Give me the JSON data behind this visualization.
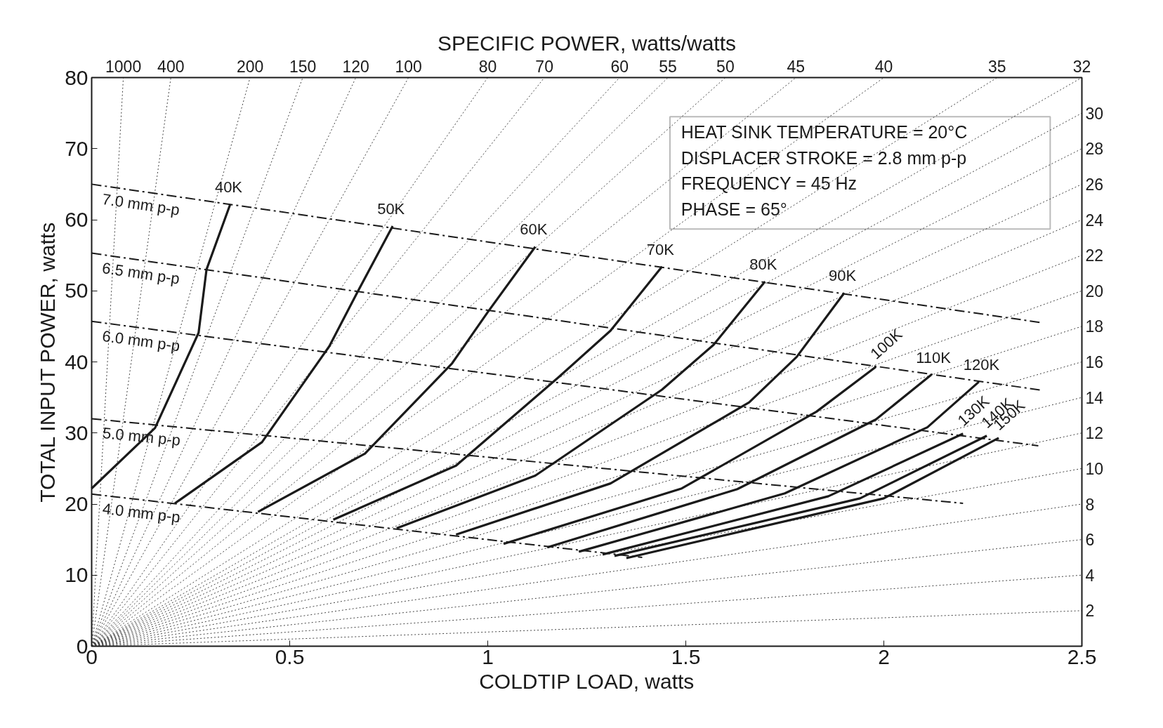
{
  "chart_data": {
    "type": "line",
    "title": "SPECIFIC POWER, watts/watts",
    "xlabel": "COLDTIP LOAD, watts",
    "ylabel": "TOTAL INPUT POWER, watts",
    "xlim": [
      0,
      2.5
    ],
    "ylim": [
      0,
      80
    ],
    "xticks": [
      0,
      0.5,
      1,
      1.5,
      2,
      2.5
    ],
    "yticks": [
      0,
      10,
      20,
      30,
      40,
      50,
      60,
      70,
      80
    ],
    "y2lim": [
      0,
      32
    ],
    "y2ticks": [
      2,
      4,
      6,
      8,
      10,
      12,
      14,
      16,
      18,
      20,
      22,
      24,
      26,
      28,
      30
    ],
    "marker": "none",
    "line_style": "solid",
    "series": [
      {
        "color": "#444444",
        "line_style": "dotted",
        "x": [
          0,
          0.08
        ],
        "values": [
          0,
          80
        ]
      },
      {
        "color": "#444444",
        "line_style": "dotted",
        "x": [
          0,
          0.2
        ],
        "values": [
          0,
          80
        ]
      },
      {
        "color": "#444444",
        "line_style": "dotted",
        "x": [
          0,
          0.4
        ],
        "values": [
          0,
          80
        ]
      },
      {
        "color": "#444444",
        "line_style": "dotted",
        "x": [
          0,
          0.533
        ],
        "values": [
          0,
          80
        ]
      },
      {
        "color": "#444444",
        "line_style": "dotted",
        "x": [
          0,
          0.667
        ],
        "values": [
          0,
          80
        ]
      },
      {
        "color": "#444444",
        "line_style": "dotted",
        "x": [
          0,
          0.8
        ],
        "values": [
          0,
          80
        ]
      },
      {
        "color": "#444444",
        "line_style": "dotted",
        "x": [
          0,
          1.0
        ],
        "values": [
          0,
          80
        ]
      },
      {
        "color": "#444444",
        "line_style": "dotted",
        "x": [
          0,
          1.143
        ],
        "values": [
          0,
          80
        ]
      },
      {
        "color": "#444444",
        "line_style": "dotted",
        "x": [
          0,
          1.333
        ],
        "values": [
          0,
          80
        ]
      },
      {
        "color": "#444444",
        "line_style": "dotted",
        "x": [
          0,
          1.455
        ],
        "values": [
          0,
          80
        ]
      },
      {
        "color": "#444444",
        "line_style": "dotted",
        "x": [
          0,
          1.6
        ],
        "values": [
          0,
          80
        ]
      },
      {
        "color": "#444444",
        "line_style": "dotted",
        "x": [
          0,
          1.778
        ],
        "values": [
          0,
          80
        ]
      },
      {
        "color": "#444444",
        "line_style": "dotted",
        "x": [
          0,
          2.0
        ],
        "values": [
          0,
          80
        ]
      },
      {
        "color": "#444444",
        "line_style": "dotted",
        "x": [
          0,
          2.286
        ],
        "values": [
          0,
          80
        ]
      },
      {
        "color": "#444444",
        "line_style": "dotted",
        "x": [
          0,
          2.5
        ],
        "values": [
          0,
          80
        ]
      },
      {
        "color": "#444444",
        "line_style": "dotted",
        "x": [
          0,
          2.5
        ],
        "values": [
          0,
          75
        ]
      },
      {
        "color": "#444444",
        "line_style": "dotted",
        "x": [
          0,
          2.5
        ],
        "values": [
          0,
          70
        ]
      },
      {
        "color": "#444444",
        "line_style": "dotted",
        "x": [
          0,
          2.5
        ],
        "values": [
          0,
          65
        ]
      },
      {
        "color": "#444444",
        "line_style": "dotted",
        "x": [
          0,
          2.5
        ],
        "values": [
          0,
          60
        ]
      },
      {
        "color": "#444444",
        "line_style": "dotted",
        "x": [
          0,
          2.5
        ],
        "values": [
          0,
          55
        ]
      },
      {
        "color": "#444444",
        "line_style": "dotted",
        "x": [
          0,
          2.5
        ],
        "values": [
          0,
          50
        ]
      },
      {
        "color": "#444444",
        "line_style": "dotted",
        "x": [
          0,
          2.5
        ],
        "values": [
          0,
          45
        ]
      },
      {
        "color": "#444444",
        "line_style": "dotted",
        "x": [
          0,
          2.5
        ],
        "values": [
          0,
          40
        ]
      },
      {
        "color": "#444444",
        "line_style": "dotted",
        "x": [
          0,
          2.5
        ],
        "values": [
          0,
          35
        ]
      },
      {
        "color": "#444444",
        "line_style": "dotted",
        "x": [
          0,
          2.5
        ],
        "values": [
          0,
          30
        ]
      },
      {
        "color": "#444444",
        "line_style": "dotted",
        "x": [
          0,
          2.5
        ],
        "values": [
          0,
          25
        ]
      },
      {
        "color": "#444444",
        "line_style": "dotted",
        "x": [
          0,
          2.5
        ],
        "values": [
          0,
          20
        ]
      },
      {
        "color": "#444444",
        "line_style": "dotted",
        "x": [
          0,
          2.5
        ],
        "values": [
          0,
          15
        ]
      },
      {
        "color": "#444444",
        "line_style": "dotted",
        "x": [
          0,
          2.5
        ],
        "values": [
          0,
          10
        ]
      },
      {
        "color": "#444444",
        "line_style": "dotted",
        "x": [
          0,
          2.5
        ],
        "values": [
          0,
          5
        ]
      },
      {
        "name": "7.0 mm p-p",
        "color": "#1a1a1a",
        "line_style": "dashed",
        "x": [
          0,
          2.4
        ],
        "values": [
          65.0,
          45.5
        ]
      },
      {
        "name": "6.5 mm p-p",
        "color": "#1a1a1a",
        "line_style": "dashed",
        "x": [
          0,
          2.4
        ],
        "values": [
          55.3,
          36.0
        ]
      },
      {
        "name": "6.0 mm p-p",
        "color": "#1a1a1a",
        "line_style": "dashed",
        "x": [
          0,
          2.39
        ],
        "values": [
          45.7,
          28.2
        ]
      },
      {
        "name": "5.0 mm p-p",
        "color": "#1a1a1a",
        "line_style": "dashed",
        "x": [
          0,
          2.2
        ],
        "values": [
          32.0,
          20.1
        ]
      },
      {
        "name": "4.0 mm p-p",
        "color": "#1a1a1a",
        "line_style": "dashed",
        "x": [
          0,
          1.39
        ],
        "values": [
          21.4,
          12.5
        ]
      },
      {
        "name": "40K",
        "color": "#1a1a1a",
        "x": [
          0,
          0.16,
          0.27,
          0.29,
          0.35
        ],
        "values": [
          22.2,
          30.7,
          44.1,
          53.0,
          62.2
        ]
      },
      {
        "name": "50K",
        "color": "#1a1a1a",
        "x": [
          0.21,
          0.43,
          0.6,
          0.67,
          0.76
        ],
        "values": [
          20.1,
          28.7,
          42.2,
          49.7,
          59.1
        ]
      },
      {
        "name": "60K",
        "color": "#1a1a1a",
        "x": [
          0.42,
          0.69,
          0.91,
          1.0,
          1.12
        ],
        "values": [
          18.9,
          27.1,
          39.8,
          47.0,
          56.2
        ]
      },
      {
        "name": "70K",
        "color": "#1a1a1a",
        "x": [
          0.61,
          0.92,
          1.18,
          1.31,
          1.44
        ],
        "values": [
          17.8,
          25.4,
          37.9,
          44.4,
          53.4
        ]
      },
      {
        "name": "80K",
        "color": "#1a1a1a",
        "x": [
          0.77,
          1.12,
          1.44,
          1.57,
          1.7
        ],
        "values": [
          16.6,
          24.0,
          36.1,
          42.4,
          51.3
        ]
      },
      {
        "name": "90K",
        "color": "#1a1a1a",
        "x": [
          0.92,
          1.31,
          1.66,
          1.78,
          1.9
        ],
        "values": [
          15.7,
          22.9,
          34.3,
          40.7,
          49.7
        ]
      },
      {
        "name": "100K",
        "color": "#1a1a1a",
        "x": [
          1.04,
          1.49,
          1.83,
          1.98
        ],
        "values": [
          14.4,
          22.2,
          33.0,
          39.3
        ]
      },
      {
        "name": "110K",
        "color": "#1a1a1a",
        "x": [
          1.15,
          1.63,
          1.98,
          2.12
        ],
        "values": [
          13.9,
          22.1,
          31.9,
          38.2
        ]
      },
      {
        "name": "120K",
        "color": "#1a1a1a",
        "x": [
          1.23,
          1.75,
          2.11,
          2.24
        ],
        "values": [
          13.3,
          21.5,
          30.8,
          37.2
        ]
      },
      {
        "name": "130K",
        "color": "#1a1a1a",
        "x": [
          1.29,
          1.86,
          2.2
        ],
        "values": [
          12.9,
          21.1,
          29.9
        ]
      },
      {
        "name": "140K",
        "color": "#1a1a1a",
        "x": [
          1.32,
          1.94,
          2.26
        ],
        "values": [
          12.7,
          20.8,
          29.6
        ]
      },
      {
        "name": "150K",
        "color": "#1a1a1a",
        "x": [
          1.35,
          2.0,
          2.29
        ],
        "values": [
          12.4,
          20.8,
          29.3
        ]
      }
    ],
    "annotations": [
      "HEAT SINK TEMPERATURE = 20°C",
      "DISPLACER STROKE = 2.8 mm p-p",
      "FREQUENCY = 45 Hz",
      "PHASE = 65°",
      {
        "text": "1000",
        "x": 0.08,
        "y": 80
      },
      {
        "text": "400",
        "x": 0.2,
        "y": 80
      },
      {
        "text": "200",
        "x": 0.4,
        "y": 80
      },
      {
        "text": "150",
        "x": 0.533,
        "y": 80
      },
      {
        "text": "120",
        "x": 0.667,
        "y": 80
      },
      {
        "text": "100",
        "x": 0.8,
        "y": 80
      },
      {
        "text": "80",
        "x": 1.0,
        "y": 80
      },
      {
        "text": "70",
        "x": 1.143,
        "y": 80
      },
      {
        "text": "60",
        "x": 1.333,
        "y": 80
      },
      {
        "text": "55",
        "x": 1.455,
        "y": 80
      },
      {
        "text": "50",
        "x": 1.6,
        "y": 80
      },
      {
        "text": "45",
        "x": 1.778,
        "y": 80
      },
      {
        "text": "40",
        "x": 2.0,
        "y": 80
      },
      {
        "text": "35",
        "x": 2.286,
        "y": 80
      },
      {
        "text": "32",
        "x": 2.5,
        "y": 80
      }
    ]
  }
}
